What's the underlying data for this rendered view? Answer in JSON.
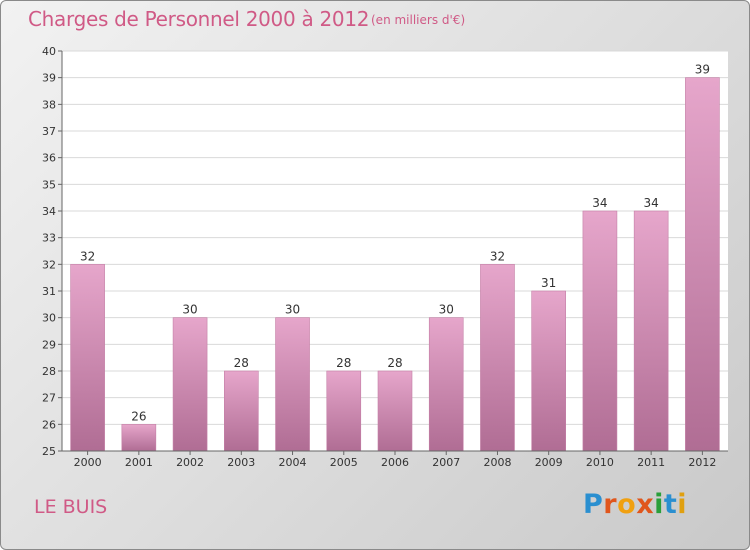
{
  "header": {
    "title": "Charges de Personnel 2000 à 2012",
    "unit": "(en milliers d'€)"
  },
  "footer": {
    "commune": "LE BUIS",
    "logo": "Proxiti"
  },
  "colors": {
    "accent": "#d05a86",
    "bar_top": "#e6a6cb",
    "bar_bottom": "#b06d94"
  },
  "chart_data": {
    "type": "bar",
    "title": "Charges de Personnel 2000 à 2012",
    "subtitle": "(en milliers d'€)",
    "categories": [
      "2000",
      "2001",
      "2002",
      "2003",
      "2004",
      "2005",
      "2006",
      "2007",
      "2008",
      "2009",
      "2010",
      "2011",
      "2012"
    ],
    "values": [
      32,
      26,
      30,
      28,
      30,
      28,
      28,
      30,
      32,
      31,
      34,
      34,
      39
    ],
    "xlabel": "",
    "ylabel": "",
    "ylim": [
      25,
      40
    ],
    "yticks": [
      25,
      26,
      27,
      28,
      29,
      30,
      31,
      32,
      33,
      34,
      35,
      36,
      37,
      38,
      39,
      40
    ],
    "grid": true,
    "legend": "none"
  }
}
